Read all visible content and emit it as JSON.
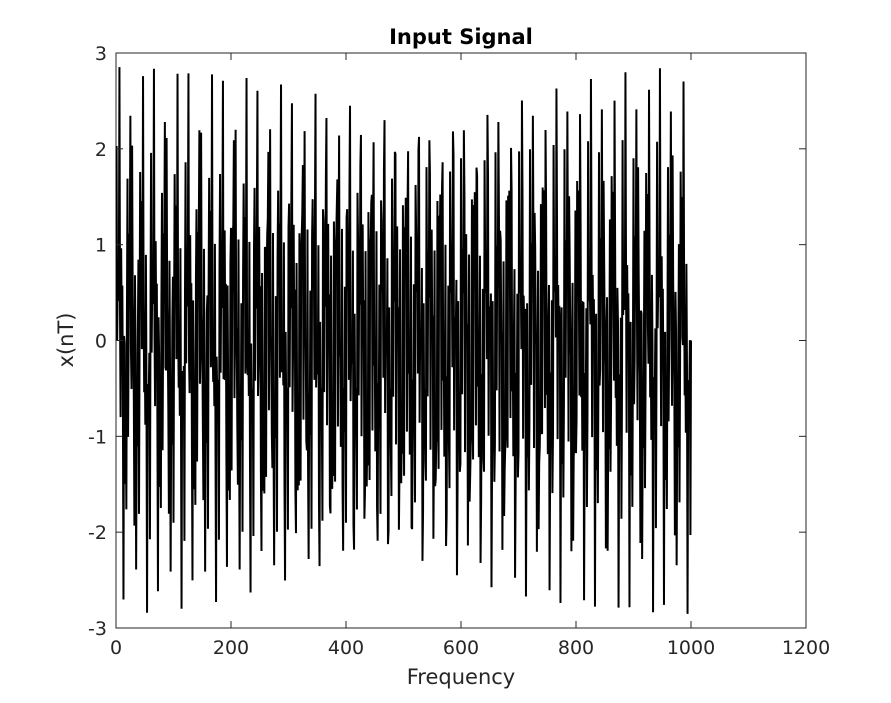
{
  "chart_data": {
    "type": "line",
    "title": "Input Signal",
    "xlabel": "Frequency",
    "ylabel": "x(nT)",
    "xlim": [
      0,
      1200
    ],
    "ylim": [
      -3,
      3
    ],
    "xticks": [
      0,
      200,
      400,
      600,
      800,
      1000,
      1200
    ],
    "yticks": [
      -3,
      -2,
      -1,
      0,
      1,
      2,
      3
    ],
    "grid": false,
    "line_color": "#000000",
    "series": [
      {
        "x_start": 1,
        "x_end": 1000,
        "x_step": 1,
        "components": [
          {
            "amplitude": 1,
            "frequency": 0.05
          },
          {
            "amplitude": 1,
            "frequency": 0.217
          },
          {
            "amplitude": 1,
            "frequency": 0.367
          }
        ]
      }
    ]
  }
}
